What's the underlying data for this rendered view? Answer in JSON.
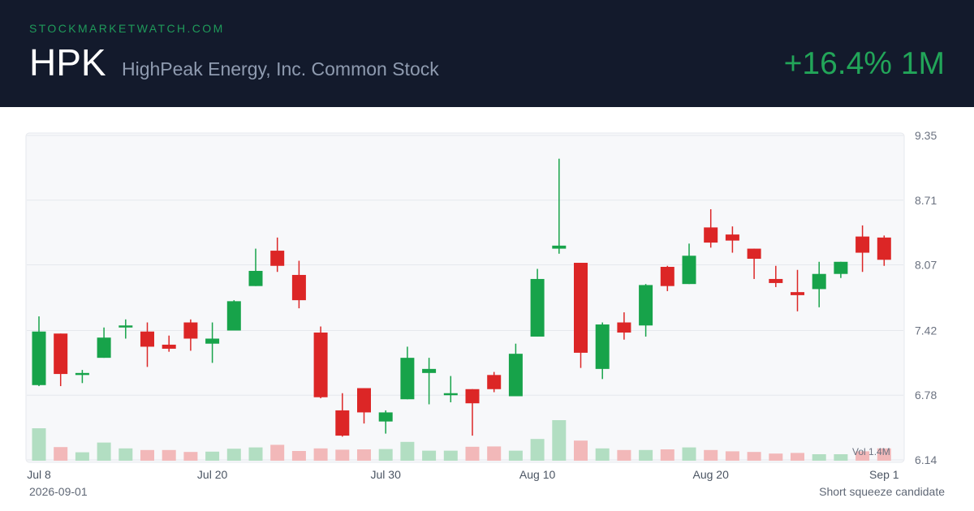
{
  "header": {
    "site": "STOCKMARKETWATCH.COM",
    "ticker": "HPK",
    "company": "HighPeak Energy, Inc. Common Stock",
    "change": "+16.4% 1M"
  },
  "footer": {
    "date": "2026-09-01",
    "note": "Short squeeze candidate"
  },
  "colors": {
    "header_bg": "#131a2c",
    "up": "#17a34a",
    "down": "#dc2626",
    "volume_up": "#b2dec2",
    "volume_down": "#f2b8b9",
    "grid": "#e6e8ed",
    "plot_bg": "#f7f8fa"
  },
  "chart_data": {
    "type": "candlestick",
    "y_ticks": [
      "9.35",
      "8.71",
      "8.07",
      "7.42",
      "6.78",
      "6.14"
    ],
    "ylim": [
      6.14,
      9.35
    ],
    "x_tick_labels": [
      {
        "label": "Jul 8",
        "index": 0
      },
      {
        "label": "Jul 20",
        "index": 8
      },
      {
        "label": "Jul 30",
        "index": 16
      },
      {
        "label": "Aug 10",
        "index": 23
      },
      {
        "label": "Aug 20",
        "index": 31
      },
      {
        "label": "Sep 1",
        "index": 39
      }
    ],
    "volume_label": "Vol 1.4M",
    "candles": [
      {
        "o": 6.88,
        "h": 7.56,
        "l": 6.87,
        "c": 7.41,
        "v": 1.0
      },
      {
        "o": 7.39,
        "h": 7.39,
        "l": 6.87,
        "c": 6.99,
        "v": 0.42
      },
      {
        "o": 6.99,
        "h": 7.03,
        "l": 6.9,
        "c": 7.0,
        "v": 0.26
      },
      {
        "o": 7.15,
        "h": 7.45,
        "l": 7.15,
        "c": 7.35,
        "v": 0.56
      },
      {
        "o": 7.46,
        "h": 7.53,
        "l": 7.34,
        "c": 7.47,
        "v": 0.38
      },
      {
        "o": 7.41,
        "h": 7.5,
        "l": 7.06,
        "c": 7.26,
        "v": 0.33
      },
      {
        "o": 7.28,
        "h": 7.37,
        "l": 7.21,
        "c": 7.24,
        "v": 0.33
      },
      {
        "o": 7.5,
        "h": 7.53,
        "l": 7.22,
        "c": 7.34,
        "v": 0.27
      },
      {
        "o": 7.29,
        "h": 7.5,
        "l": 7.1,
        "c": 7.34,
        "v": 0.28
      },
      {
        "o": 7.42,
        "h": 7.72,
        "l": 7.42,
        "c": 7.71,
        "v": 0.37
      },
      {
        "o": 7.86,
        "h": 8.23,
        "l": 7.86,
        "c": 8.01,
        "v": 0.41
      },
      {
        "o": 8.21,
        "h": 8.34,
        "l": 8.0,
        "c": 8.06,
        "v": 0.49
      },
      {
        "o": 7.97,
        "h": 8.11,
        "l": 7.64,
        "c": 7.72,
        "v": 0.3
      },
      {
        "o": 7.4,
        "h": 7.46,
        "l": 6.75,
        "c": 6.76,
        "v": 0.38
      },
      {
        "o": 6.63,
        "h": 6.8,
        "l": 6.37,
        "c": 6.38,
        "v": 0.34
      },
      {
        "o": 6.85,
        "h": 6.85,
        "l": 6.5,
        "c": 6.61,
        "v": 0.35
      },
      {
        "o": 6.52,
        "h": 6.63,
        "l": 6.4,
        "c": 6.61,
        "v": 0.36
      },
      {
        "o": 6.74,
        "h": 7.26,
        "l": 6.74,
        "c": 7.15,
        "v": 0.58
      },
      {
        "o": 7.0,
        "h": 7.15,
        "l": 6.69,
        "c": 7.04,
        "v": 0.31
      },
      {
        "o": 6.79,
        "h": 6.97,
        "l": 6.71,
        "c": 6.8,
        "v": 0.31
      },
      {
        "o": 6.84,
        "h": 6.84,
        "l": 6.38,
        "c": 6.7,
        "v": 0.43
      },
      {
        "o": 6.98,
        "h": 7.01,
        "l": 6.81,
        "c": 6.84,
        "v": 0.44
      },
      {
        "o": 6.77,
        "h": 7.29,
        "l": 6.77,
        "c": 7.19,
        "v": 0.31
      },
      {
        "o": 7.36,
        "h": 8.03,
        "l": 7.36,
        "c": 7.93,
        "v": 0.67
      },
      {
        "o": 8.23,
        "h": 9.12,
        "l": 8.18,
        "c": 8.26,
        "v": 1.25
      },
      {
        "o": 8.09,
        "h": 8.09,
        "l": 7.05,
        "c": 7.2,
        "v": 0.62
      },
      {
        "o": 7.04,
        "h": 7.5,
        "l": 6.94,
        "c": 7.48,
        "v": 0.38
      },
      {
        "o": 7.5,
        "h": 7.6,
        "l": 7.33,
        "c": 7.4,
        "v": 0.33
      },
      {
        "o": 7.47,
        "h": 7.88,
        "l": 7.36,
        "c": 7.87,
        "v": 0.33
      },
      {
        "o": 8.05,
        "h": 8.06,
        "l": 7.81,
        "c": 7.86,
        "v": 0.35
      },
      {
        "o": 7.88,
        "h": 8.28,
        "l": 7.88,
        "c": 8.16,
        "v": 0.41
      },
      {
        "o": 8.44,
        "h": 8.62,
        "l": 8.24,
        "c": 8.29,
        "v": 0.33
      },
      {
        "o": 8.37,
        "h": 8.45,
        "l": 8.19,
        "c": 8.31,
        "v": 0.29
      },
      {
        "o": 8.23,
        "h": 8.23,
        "l": 7.93,
        "c": 8.13,
        "v": 0.27
      },
      {
        "o": 7.93,
        "h": 8.06,
        "l": 7.85,
        "c": 7.89,
        "v": 0.22
      },
      {
        "o": 7.8,
        "h": 8.02,
        "l": 7.61,
        "c": 7.77,
        "v": 0.24
      },
      {
        "o": 7.83,
        "h": 8.1,
        "l": 7.65,
        "c": 7.98,
        "v": 0.2
      },
      {
        "o": 7.98,
        "h": 8.1,
        "l": 7.94,
        "c": 8.1,
        "v": 0.2
      },
      {
        "o": 8.35,
        "h": 8.46,
        "l": 8.0,
        "c": 8.19,
        "v": 0.29
      },
      {
        "o": 8.34,
        "h": 8.36,
        "l": 8.06,
        "c": 8.12,
        "v": 0.38
      }
    ]
  }
}
